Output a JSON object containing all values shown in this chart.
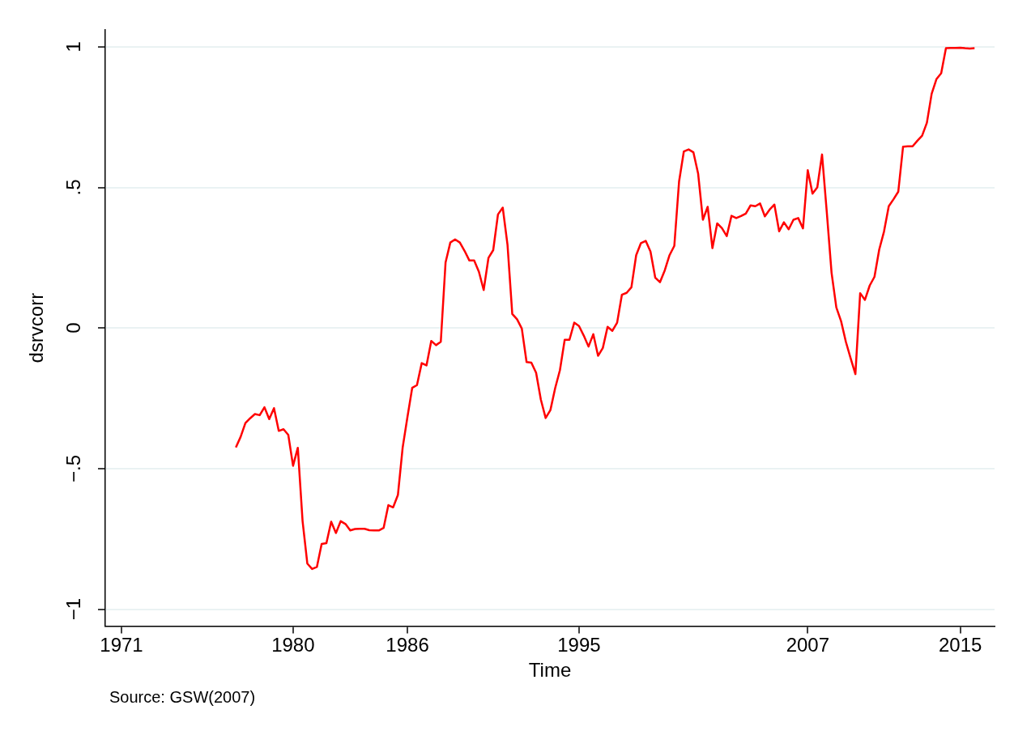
{
  "chart_data": {
    "type": "line",
    "xlabel": "Time",
    "ylabel": "dsrvcorr",
    "annotations": [
      "Source: GSW(2007)"
    ],
    "xlim": [
      1970.15,
      2016.8
    ],
    "xticks": [
      1971,
      1980,
      1986,
      1995,
      2007,
      2015
    ],
    "ylim": [
      -1.06,
      1.06
    ],
    "yticks": [
      {
        "value": -1,
        "label": "−1"
      },
      {
        "value": -0.5,
        "label": "−.5"
      },
      0,
      {
        "value": 0.5,
        "label": ".5"
      },
      1
    ],
    "grid": "y",
    "legend": false,
    "line_style": "solid",
    "x": [
      1977,
      1977.25,
      1977.5,
      1977.75,
      1978,
      1978.25,
      1978.5,
      1978.75,
      1979,
      1979.25,
      1979.5,
      1979.75,
      1980,
      1980.25,
      1980.5,
      1980.75,
      1981,
      1981.25,
      1981.5,
      1981.75,
      1982,
      1982.25,
      1982.5,
      1982.75,
      1983,
      1983.25,
      1983.5,
      1983.75,
      1984,
      1984.25,
      1984.5,
      1984.75,
      1985,
      1985.25,
      1985.5,
      1985.75,
      1986,
      1986.25,
      1986.5,
      1986.75,
      1987,
      1987.25,
      1987.5,
      1987.75,
      1988,
      1988.25,
      1988.5,
      1988.75,
      1989,
      1989.25,
      1989.5,
      1989.75,
      1990,
      1990.25,
      1990.5,
      1990.75,
      1991,
      1991.25,
      1991.5,
      1991.75,
      1992,
      1992.25,
      1992.5,
      1992.75,
      1993,
      1993.25,
      1993.5,
      1993.75,
      1994,
      1994.25,
      1994.5,
      1994.75,
      1995,
      1995.25,
      1995.5,
      1995.75,
      1996,
      1996.25,
      1996.5,
      1996.75,
      1997,
      1997.25,
      1997.5,
      1997.75,
      1998,
      1998.25,
      1998.5,
      1998.75,
      1999,
      1999.25,
      1999.5,
      1999.75,
      2000,
      2000.25,
      2000.5,
      2000.75,
      2001,
      2001.25,
      2001.5,
      2001.75,
      2002,
      2002.25,
      2002.5,
      2002.75,
      2003,
      2003.25,
      2003.5,
      2003.75,
      2004,
      2004.25,
      2004.5,
      2004.75,
      2005,
      2005.25,
      2005.5,
      2005.75,
      2006,
      2006.25,
      2006.5,
      2006.75,
      2007,
      2007.25,
      2007.5,
      2007.75,
      2008,
      2008.25,
      2008.5,
      2008.75,
      2009,
      2009.25,
      2009.5,
      2009.75,
      2010,
      2010.25,
      2010.5,
      2010.75,
      2011,
      2011.25,
      2011.5,
      2011.75,
      2012,
      2012.25,
      2012.5,
      2012.75,
      2013,
      2013.25,
      2013.5,
      2013.75,
      2014,
      2014.25,
      2014.5,
      2014.75,
      2015,
      2015.25,
      2015.5,
      2015.75
    ],
    "series": [
      {
        "color": "#ff0000",
        "values": [
          -0.425,
          -0.387,
          -0.338,
          -0.321,
          -0.306,
          -0.31,
          -0.282,
          -0.324,
          -0.285,
          -0.366,
          -0.36,
          -0.38,
          -0.49,
          -0.426,
          -0.687,
          -0.838,
          -0.857,
          -0.85,
          -0.768,
          -0.765,
          -0.689,
          -0.729,
          -0.687,
          -0.697,
          -0.72,
          -0.715,
          -0.714,
          -0.714,
          -0.719,
          -0.72,
          -0.72,
          -0.711,
          -0.63,
          -0.638,
          -0.594,
          -0.425,
          -0.317,
          -0.213,
          -0.203,
          -0.125,
          -0.133,
          -0.046,
          -0.061,
          -0.049,
          0.233,
          0.304,
          0.315,
          0.304,
          0.274,
          0.24,
          0.24,
          0.2,
          0.135,
          0.249,
          0.277,
          0.404,
          0.428,
          0.296,
          0.05,
          0.031,
          -0.002,
          -0.121,
          -0.123,
          -0.159,
          -0.255,
          -0.32,
          -0.292,
          -0.214,
          -0.15,
          -0.042,
          -0.042,
          0.019,
          0.007,
          -0.027,
          -0.066,
          -0.022,
          -0.099,
          -0.071,
          0.004,
          -0.01,
          0.019,
          0.118,
          0.125,
          0.145,
          0.259,
          0.302,
          0.31,
          0.272,
          0.179,
          0.163,
          0.205,
          0.259,
          0.292,
          0.521,
          0.628,
          0.635,
          0.625,
          0.549,
          0.385,
          0.431,
          0.284,
          0.372,
          0.355,
          0.327,
          0.399,
          0.391,
          0.398,
          0.407,
          0.436,
          0.433,
          0.443,
          0.397,
          0.421,
          0.439,
          0.344,
          0.376,
          0.351,
          0.385,
          0.391,
          0.354,
          0.561,
          0.478,
          0.5,
          0.617,
          0.411,
          0.196,
          0.073,
          0.024,
          -0.049,
          -0.108,
          -0.164,
          0.124,
          0.1,
          0.151,
          0.182,
          0.279,
          0.343,
          0.433,
          0.458,
          0.485,
          0.645,
          0.646,
          0.646,
          0.666,
          0.684,
          0.73,
          0.833,
          0.885,
          0.906,
          0.995,
          0.996,
          0.996,
          0.997,
          0.995,
          0.994,
          0.995
        ]
      }
    ]
  }
}
